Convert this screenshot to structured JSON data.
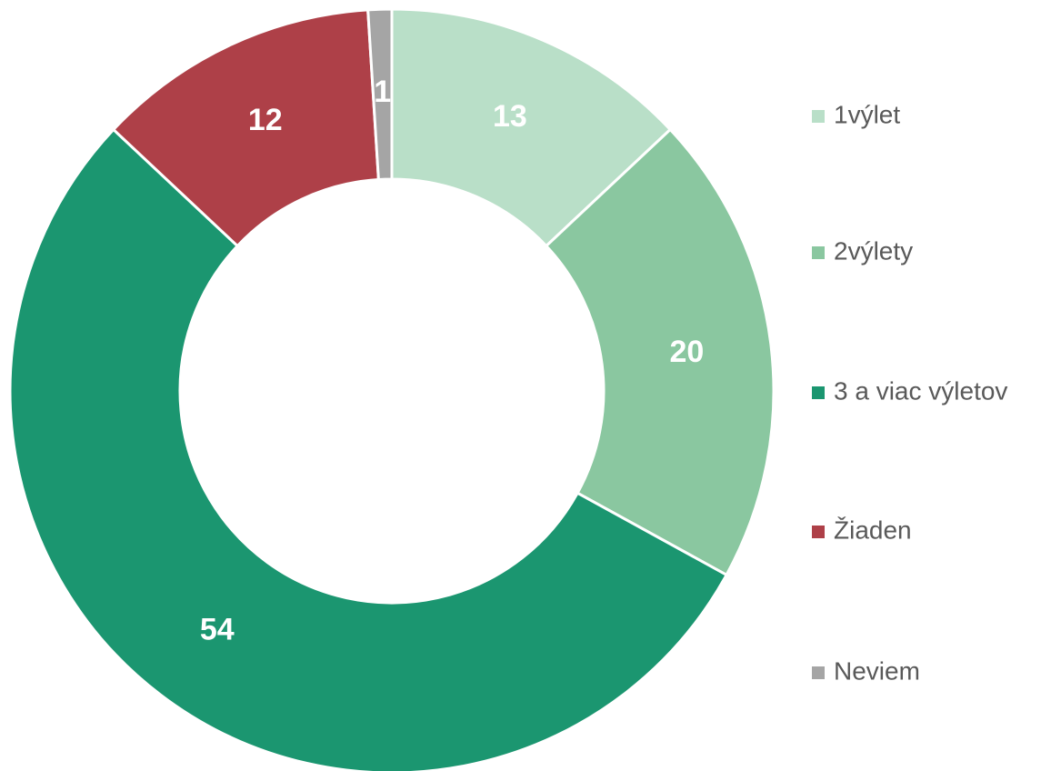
{
  "chart_data": {
    "type": "doughnut",
    "categories": [
      "1výlet",
      "2výlety",
      "3 a viac výletov",
      "Žiaden",
      "Neviem"
    ],
    "values": [
      13,
      20,
      54,
      12,
      1
    ],
    "colors": [
      "#b9dfc8",
      "#8ac7a0",
      "#1b9670",
      "#ae4048",
      "#a5a5a5"
    ],
    "legend": "right"
  }
}
